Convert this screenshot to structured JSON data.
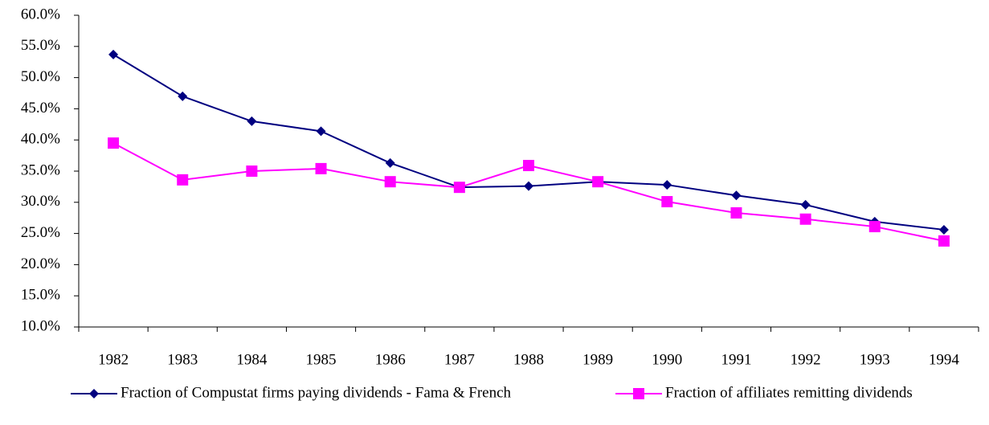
{
  "chart_data": {
    "type": "line",
    "categories": [
      "1982",
      "1983",
      "1984",
      "1985",
      "1986",
      "1987",
      "1988",
      "1989",
      "1990",
      "1991",
      "1992",
      "1993",
      "1994"
    ],
    "series": [
      {
        "name": "Fraction of Compustat firms paying dividends - Fama & French",
        "color": "#000080",
        "marker": "diamond",
        "values": [
          53.7,
          47.0,
          43.0,
          41.4,
          36.3,
          32.4,
          32.6,
          33.3,
          32.8,
          31.1,
          29.6,
          26.9,
          25.6
        ]
      },
      {
        "name": "Fraction of affiliates remitting dividends",
        "color": "#ff00ff",
        "marker": "square",
        "values": [
          39.5,
          33.6,
          35.0,
          35.4,
          33.3,
          32.4,
          35.9,
          33.3,
          30.1,
          28.3,
          27.3,
          26.1,
          23.8
        ]
      }
    ],
    "ylim": [
      10,
      60
    ],
    "yticks": [
      {
        "value": 10,
        "label": "10.0%"
      },
      {
        "value": 15,
        "label": "15.0%"
      },
      {
        "value": 20,
        "label": "20.0%"
      },
      {
        "value": 25,
        "label": "25.0%"
      },
      {
        "value": 30,
        "label": "30.0%"
      },
      {
        "value": 35,
        "label": "35.0%"
      },
      {
        "value": 40,
        "label": "40.0%"
      },
      {
        "value": 45,
        "label": "45.0%"
      },
      {
        "value": 50,
        "label": "50.0%"
      },
      {
        "value": 55,
        "label": "55.0%"
      },
      {
        "value": 60,
        "label": "60.0%"
      }
    ],
    "grid": false,
    "legend": "bottom"
  }
}
